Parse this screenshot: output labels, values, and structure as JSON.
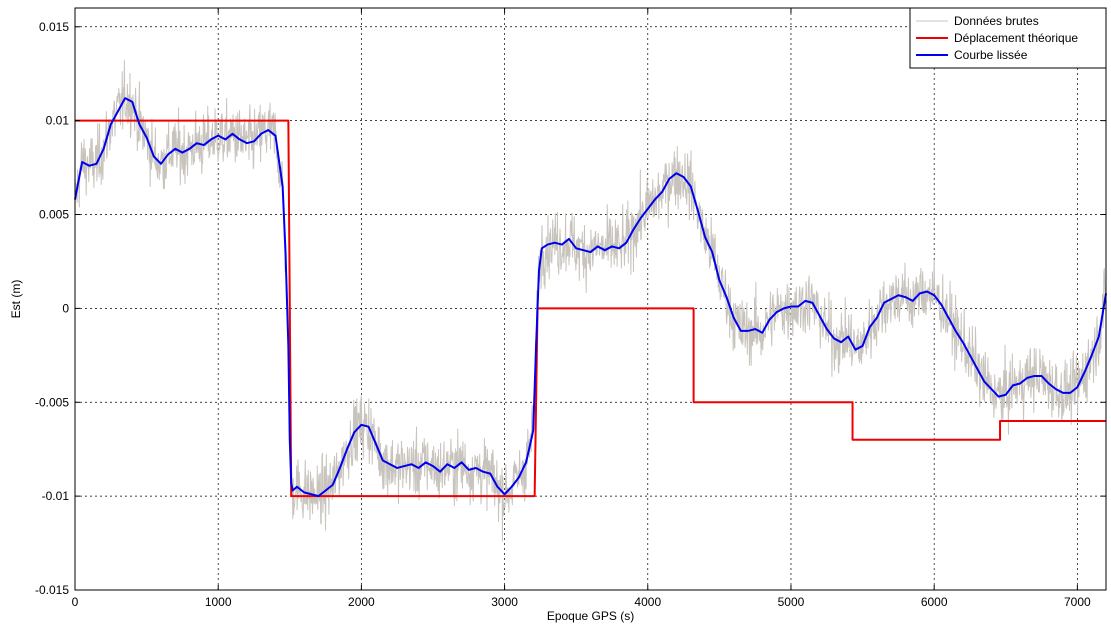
{
  "chart_data": {
    "type": "line",
    "title": "",
    "xlabel": "Epoque GPS (s)",
    "ylabel": "Est (m)",
    "xlim": [
      0,
      7200
    ],
    "ylim": [
      -0.015,
      0.016
    ],
    "xticks": [
      0,
      1000,
      2000,
      3000,
      4000,
      5000,
      6000,
      7000
    ],
    "xtick_labels": [
      "0",
      "1000",
      "2000",
      "3000",
      "4000",
      "5000",
      "6000",
      "7000"
    ],
    "yticks": [
      -0.015,
      -0.01,
      -0.005,
      0,
      0.005,
      0.01,
      0.015
    ],
    "ytick_labels": [
      "-0.015",
      "-0.01",
      "-0.005",
      "0",
      "0.005",
      "0.01",
      "0.015"
    ],
    "grid": true,
    "legend_position": "top-right",
    "series": [
      {
        "name": "Données brutes",
        "color": "#c8c4bd",
        "style": "noisy-raw",
        "x": [
          0,
          50,
          100,
          150,
          200,
          250,
          300,
          350,
          400,
          450,
          500,
          550,
          600,
          650,
          700,
          750,
          800,
          850,
          900,
          950,
          1000,
          1050,
          1100,
          1150,
          1200,
          1250,
          1300,
          1350,
          1400,
          1450,
          1470,
          1490,
          1500,
          1510,
          1520,
          1550,
          1600,
          1650,
          1700,
          1750,
          1800,
          1850,
          1900,
          1950,
          2000,
          2050,
          2100,
          2150,
          2200,
          2250,
          2300,
          2350,
          2400,
          2450,
          2500,
          2550,
          2600,
          2650,
          2700,
          2750,
          2800,
          2850,
          2900,
          2950,
          3000,
          3050,
          3100,
          3150,
          3180,
          3200,
          3220,
          3240,
          3260,
          3300,
          3350,
          3400,
          3450,
          3500,
          3550,
          3600,
          3650,
          3700,
          3750,
          3800,
          3850,
          3900,
          3950,
          4000,
          4050,
          4100,
          4150,
          4200,
          4250,
          4300,
          4350,
          4400,
          4450,
          4500,
          4550,
          4600,
          4650,
          4700,
          4750,
          4800,
          4850,
          4900,
          4950,
          5000,
          5050,
          5100,
          5150,
          5200,
          5250,
          5300,
          5350,
          5400,
          5450,
          5500,
          5550,
          5600,
          5650,
          5700,
          5750,
          5800,
          5850,
          5900,
          5950,
          6000,
          6050,
          6100,
          6150,
          6200,
          6250,
          6300,
          6350,
          6400,
          6450,
          6500,
          6550,
          6600,
          6650,
          6700,
          6750,
          6800,
          6850,
          6900,
          6950,
          7000,
          7050,
          7100,
          7150,
          7200
        ],
        "values": [
          0.0058,
          0.0078,
          0.0076,
          0.0077,
          0.0085,
          0.0098,
          0.0105,
          0.0112,
          0.011,
          0.0098,
          0.0091,
          0.0081,
          0.0077,
          0.0082,
          0.0085,
          0.0083,
          0.0085,
          0.0088,
          0.0087,
          0.009,
          0.0092,
          0.009,
          0.0093,
          0.009,
          0.0088,
          0.0089,
          0.0093,
          0.0095,
          0.0092,
          0.0065,
          0.003,
          -0.002,
          -0.007,
          -0.0093,
          -0.0097,
          -0.0095,
          -0.0098,
          -0.0099,
          -0.01,
          -0.0097,
          -0.0094,
          -0.0085,
          -0.0075,
          -0.0066,
          -0.0062,
          -0.0063,
          -0.0072,
          -0.0081,
          -0.0083,
          -0.0085,
          -0.0084,
          -0.0083,
          -0.0085,
          -0.0082,
          -0.0084,
          -0.0087,
          -0.0083,
          -0.0085,
          -0.0082,
          -0.0086,
          -0.0085,
          -0.0087,
          -0.0088,
          -0.0095,
          -0.0099,
          -0.0095,
          -0.009,
          -0.0082,
          -0.0072,
          -0.0065,
          -0.002,
          0.002,
          0.0032,
          0.0034,
          0.0035,
          0.0034,
          0.0037,
          0.0032,
          0.0031,
          0.003,
          0.0033,
          0.0031,
          0.0033,
          0.0032,
          0.0035,
          0.0042,
          0.0048,
          0.0053,
          0.0058,
          0.0062,
          0.0069,
          0.0072,
          0.007,
          0.0065,
          0.0052,
          0.0038,
          0.003,
          0.0015,
          0.0006,
          -0.0005,
          -0.0012,
          -0.0012,
          -0.0011,
          -0.0013,
          -0.0006,
          -0.0002,
          0.0,
          0.0001,
          0.0001,
          0.0004,
          0.0003,
          -0.0004,
          -0.0011,
          -0.0016,
          -0.0018,
          -0.0015,
          -0.0022,
          -0.002,
          -0.001,
          -0.0005,
          0.0003,
          0.0005,
          0.0007,
          0.0006,
          0.0004,
          0.0008,
          0.0009,
          0.0007,
          0.0002,
          -0.0005,
          -0.0012,
          -0.0018,
          -0.0025,
          -0.0032,
          -0.0039,
          -0.0043,
          -0.0047,
          -0.0046,
          -0.0041,
          -0.004,
          -0.0037,
          -0.0036,
          -0.0036,
          -0.004,
          -0.0043,
          -0.0045,
          -0.0045,
          -0.0042,
          -0.0034,
          -0.0025,
          -0.0015,
          0.0008
        ]
      },
      {
        "name": "Déplacement théorique",
        "color": "#ee0000",
        "x": [
          0,
          1490,
          1510,
          3210,
          3230,
          4320,
          4320,
          5430,
          5430,
          6460,
          6460,
          7200
        ],
        "values": [
          0.01,
          0.01,
          -0.01,
          -0.01,
          0.0,
          0.0,
          -0.005,
          -0.005,
          -0.007,
          -0.007,
          -0.006,
          -0.006
        ]
      },
      {
        "name": "Courbe lissée",
        "color": "#0000ee",
        "x": [
          0,
          50,
          100,
          150,
          200,
          250,
          300,
          350,
          400,
          450,
          500,
          550,
          600,
          650,
          700,
          750,
          800,
          850,
          900,
          950,
          1000,
          1050,
          1100,
          1150,
          1200,
          1250,
          1300,
          1350,
          1400,
          1450,
          1470,
          1490,
          1500,
          1510,
          1520,
          1550,
          1600,
          1650,
          1700,
          1750,
          1800,
          1850,
          1900,
          1950,
          2000,
          2050,
          2100,
          2150,
          2200,
          2250,
          2300,
          2350,
          2400,
          2450,
          2500,
          2550,
          2600,
          2650,
          2700,
          2750,
          2800,
          2850,
          2900,
          2950,
          3000,
          3050,
          3100,
          3150,
          3180,
          3200,
          3220,
          3240,
          3260,
          3300,
          3350,
          3400,
          3450,
          3500,
          3550,
          3600,
          3650,
          3700,
          3750,
          3800,
          3850,
          3900,
          3950,
          4000,
          4050,
          4100,
          4150,
          4200,
          4250,
          4300,
          4350,
          4400,
          4450,
          4500,
          4550,
          4600,
          4650,
          4700,
          4750,
          4800,
          4850,
          4900,
          4950,
          5000,
          5050,
          5100,
          5150,
          5200,
          5250,
          5300,
          5350,
          5400,
          5450,
          5500,
          5550,
          5600,
          5650,
          5700,
          5750,
          5800,
          5850,
          5900,
          5950,
          6000,
          6050,
          6100,
          6150,
          6200,
          6250,
          6300,
          6350,
          6400,
          6450,
          6500,
          6550,
          6600,
          6650,
          6700,
          6750,
          6800,
          6850,
          6900,
          6950,
          7000,
          7050,
          7100,
          7150,
          7200
        ],
        "values": [
          0.0058,
          0.0078,
          0.0076,
          0.0077,
          0.0085,
          0.0098,
          0.0105,
          0.0112,
          0.011,
          0.0098,
          0.0091,
          0.0081,
          0.0077,
          0.0082,
          0.0085,
          0.0083,
          0.0085,
          0.0088,
          0.0087,
          0.009,
          0.0092,
          0.009,
          0.0093,
          0.009,
          0.0088,
          0.0089,
          0.0093,
          0.0095,
          0.0092,
          0.0065,
          0.003,
          -0.002,
          -0.007,
          -0.0093,
          -0.0097,
          -0.0095,
          -0.0098,
          -0.0099,
          -0.01,
          -0.0097,
          -0.0094,
          -0.0085,
          -0.0075,
          -0.0066,
          -0.0062,
          -0.0063,
          -0.0072,
          -0.0081,
          -0.0083,
          -0.0085,
          -0.0084,
          -0.0083,
          -0.0085,
          -0.0082,
          -0.0084,
          -0.0087,
          -0.0083,
          -0.0085,
          -0.0082,
          -0.0086,
          -0.0085,
          -0.0087,
          -0.0088,
          -0.0095,
          -0.0099,
          -0.0095,
          -0.009,
          -0.0082,
          -0.0072,
          -0.0065,
          -0.002,
          0.002,
          0.0032,
          0.0034,
          0.0035,
          0.0034,
          0.0037,
          0.0032,
          0.0031,
          0.003,
          0.0033,
          0.0031,
          0.0033,
          0.0032,
          0.0035,
          0.0042,
          0.0048,
          0.0053,
          0.0058,
          0.0062,
          0.0069,
          0.0072,
          0.007,
          0.0065,
          0.0052,
          0.0038,
          0.003,
          0.0015,
          0.0006,
          -0.0005,
          -0.0012,
          -0.0012,
          -0.0011,
          -0.0013,
          -0.0006,
          -0.0002,
          0.0,
          0.0001,
          0.0001,
          0.0004,
          0.0003,
          -0.0004,
          -0.0011,
          -0.0016,
          -0.0018,
          -0.0015,
          -0.0022,
          -0.002,
          -0.001,
          -0.0005,
          0.0003,
          0.0005,
          0.0007,
          0.0006,
          0.0004,
          0.0008,
          0.0009,
          0.0007,
          0.0002,
          -0.0005,
          -0.0012,
          -0.0018,
          -0.0025,
          -0.0032,
          -0.0039,
          -0.0043,
          -0.0047,
          -0.0046,
          -0.0041,
          -0.004,
          -0.0037,
          -0.0036,
          -0.0036,
          -0.004,
          -0.0043,
          -0.0045,
          -0.0045,
          -0.0042,
          -0.0034,
          -0.0025,
          -0.0015,
          0.0008
        ]
      }
    ]
  }
}
